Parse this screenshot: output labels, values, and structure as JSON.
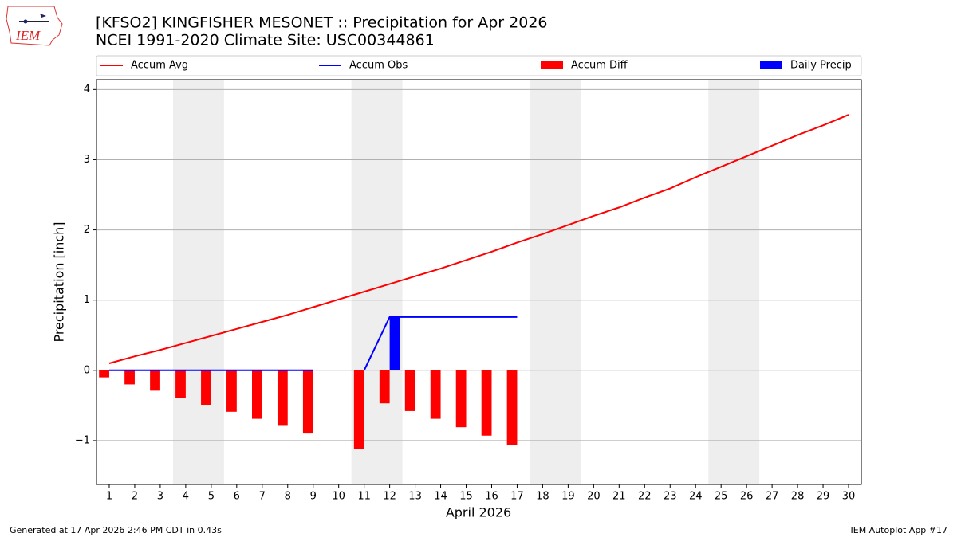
{
  "logo_text": "IEM",
  "footer_left": "Generated at 17 Apr 2026 2:46 PM CDT in 0.43s",
  "footer_right": "IEM Autoplot App #17",
  "chart_data": {
    "type": "bar_line",
    "title": "[KFSO2] KINGFISHER MESONET :: Precipitation for Apr 2026",
    "subtitle": "NCEI 1991-2020 Climate Site: USC00344861",
    "x_label": "April 2026",
    "y_label": "Precipitation [inch]",
    "x": [
      1,
      2,
      3,
      4,
      5,
      6,
      7,
      8,
      9,
      10,
      11,
      12,
      13,
      14,
      15,
      16,
      17,
      18,
      19,
      20,
      21,
      22,
      23,
      24,
      25,
      26,
      27,
      28,
      29,
      30
    ],
    "xlim": [
      0.5,
      30.5
    ],
    "xticks": [
      1,
      2,
      3,
      4,
      5,
      6,
      7,
      8,
      9,
      10,
      11,
      12,
      13,
      14,
      15,
      16,
      17,
      18,
      19,
      20,
      21,
      22,
      23,
      24,
      25,
      26,
      27,
      28,
      29,
      30
    ],
    "ylim": [
      -1.625,
      4.14
    ],
    "yticks": [
      {
        "value": -1,
        "label": "−1"
      },
      0,
      1,
      2,
      3,
      4
    ],
    "grid": true,
    "legend": "top",
    "shaded_spans": [
      [
        3.5,
        5.5
      ],
      [
        10.5,
        12.5
      ],
      [
        17.5,
        19.5
      ],
      [
        24.5,
        26.5
      ]
    ],
    "shade_color": "#eeeeee",
    "series": [
      {
        "name": "Accum Avg",
        "kind": "line",
        "color": "#ff0000",
        "values": [
          0.1,
          0.2,
          0.29,
          0.39,
          0.49,
          0.59,
          0.69,
          0.79,
          0.9,
          1.01,
          1.12,
          1.23,
          1.34,
          1.45,
          1.57,
          1.69,
          1.82,
          1.94,
          2.07,
          2.2,
          2.32,
          2.46,
          2.59,
          2.75,
          2.9,
          3.05,
          3.2,
          3.35,
          3.49,
          3.64
        ]
      },
      {
        "name": "Accum Obs",
        "kind": "line",
        "color": "#0000ff",
        "values": [
          0,
          0,
          0,
          0,
          0,
          0,
          0,
          0,
          0,
          null,
          0,
          0.76,
          0.76,
          0.76,
          0.76,
          0.76,
          0.76,
          null,
          null,
          null,
          null,
          null,
          null,
          null,
          null,
          null,
          null,
          null,
          null,
          null
        ]
      },
      {
        "name": "Accum Diff",
        "kind": "bar",
        "offset": "left",
        "color": "#ff0000",
        "values": [
          -0.1,
          -0.2,
          -0.29,
          -0.39,
          -0.49,
          -0.59,
          -0.69,
          -0.79,
          -0.9,
          null,
          -1.12,
          -0.47,
          -0.58,
          -0.69,
          -0.81,
          -0.93,
          -1.06,
          null,
          null,
          null,
          null,
          null,
          null,
          null,
          null,
          null,
          null,
          null,
          null,
          null
        ]
      },
      {
        "name": "Daily Precip",
        "kind": "bar",
        "offset": "right",
        "color": "#0000ff",
        "values": [
          0,
          0,
          0,
          0,
          0,
          0,
          0,
          0,
          0,
          null,
          0,
          0.76,
          0,
          0,
          0,
          0,
          0,
          null,
          null,
          null,
          null,
          null,
          null,
          null,
          null,
          null,
          null,
          null,
          null,
          null
        ]
      }
    ]
  }
}
